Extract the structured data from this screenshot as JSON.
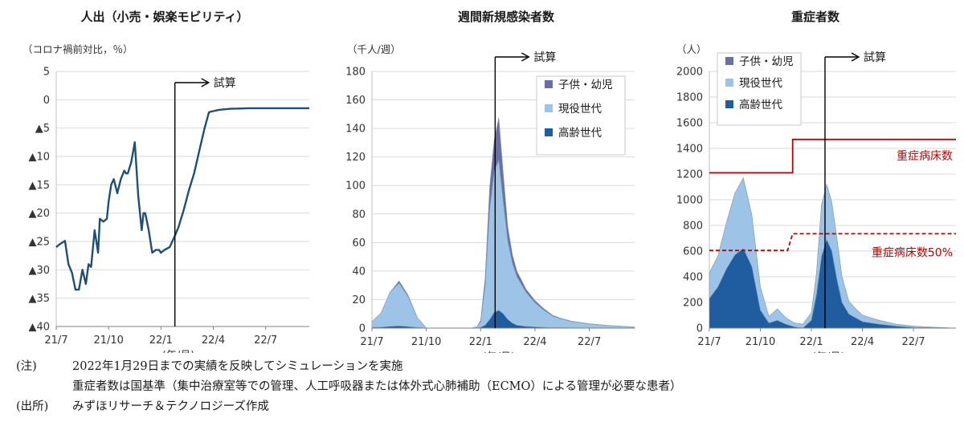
{
  "chart_data": [
    {
      "type": "line",
      "title": "人出（小売・娯楽モビリティ）",
      "ylabel": "（コロナ禍前対比，％）",
      "xlabel": "(年/月)",
      "ylim": [
        -40,
        5
      ],
      "y_ticks": [
        5,
        0,
        -5,
        -10,
        -15,
        -20,
        -25,
        -30,
        -35,
        -40
      ],
      "y_tick_labels": [
        "5",
        "0",
        "▲5",
        "▲10",
        "▲15",
        "▲20",
        "▲25",
        "▲30",
        "▲35",
        "▲40"
      ],
      "x_ticks": [
        0,
        3,
        6,
        9,
        12
      ],
      "x_tick_labels": [
        "21/7",
        "21/10",
        "22/1",
        "22/4",
        "22/7"
      ],
      "xlim": [
        0,
        14.5
      ],
      "grid": "horizontal",
      "annotation": "試算",
      "forecast_start": 6.8,
      "series": [
        {
          "color": "#1f4e79",
          "x": [
            0,
            0.2,
            0.5,
            0.7,
            0.9,
            1.1,
            1.3,
            1.5,
            1.7,
            1.85,
            2.0,
            2.2,
            2.4,
            2.5,
            2.7,
            2.9,
            3.0,
            3.15,
            3.3,
            3.5,
            3.7,
            3.9,
            4.0,
            4.1,
            4.3,
            4.5,
            4.7,
            4.9,
            5.0,
            5.1,
            5.3,
            5.5,
            5.7,
            5.9,
            6.0,
            6.2,
            6.5,
            6.8,
            7.0,
            7.3,
            7.6,
            7.9,
            8.2,
            8.5,
            8.75,
            9.0,
            9.3,
            9.6,
            10.0,
            10.5,
            11,
            11.5,
            12,
            13,
            14,
            14.5
          ],
          "values": [
            -26,
            -25.5,
            -24.9,
            -29,
            -30.5,
            -33.5,
            -33.5,
            -30,
            -32.5,
            -29,
            -29.5,
            -23,
            -27,
            -21,
            -21.5,
            -21,
            -18,
            -15,
            -14,
            -16.5,
            -14,
            -12.5,
            -13,
            -13,
            -11,
            -7.5,
            -17,
            -23,
            -20,
            -20,
            -23,
            -27,
            -26.5,
            -26.5,
            -27,
            -26.5,
            -26,
            -24,
            -22.5,
            -19.5,
            -16,
            -13,
            -9,
            -5,
            -2.2,
            -2,
            -1.8,
            -1.7,
            -1.6,
            -1.55,
            -1.5,
            -1.5,
            -1.5,
            -1.5,
            -1.5,
            -1.5
          ]
        }
      ]
    },
    {
      "type": "area",
      "title": "週間新規感染者数",
      "ylabel": "（千人/週）",
      "xlabel": "(年/月)",
      "ylim": [
        0,
        180
      ],
      "y_ticks": [
        0,
        20,
        40,
        60,
        80,
        100,
        120,
        140,
        160,
        180
      ],
      "x_ticks": [
        0,
        3,
        6,
        9,
        12
      ],
      "x_tick_labels": [
        "21/7",
        "21/10",
        "22/1",
        "22/4",
        "22/7"
      ],
      "xlim": [
        0,
        14.5
      ],
      "grid": "horizontal",
      "stacked": true,
      "annotation": "試算",
      "forecast_start": 6.8,
      "legend_placement": "top-right",
      "series": [
        {
          "name": "子供・幼児",
          "color": "#6a6fa8",
          "x": [
            0,
            0.5,
            1.0,
            1.5,
            2.0,
            2.5,
            3.0,
            4.0,
            5.0,
            5.5,
            5.8,
            6.0,
            6.25,
            6.5,
            6.75,
            7.0,
            7.25,
            7.5,
            7.75,
            8.0,
            8.5,
            9.0,
            9.5,
            10.0,
            10.5,
            11.0,
            12.0,
            13.0,
            14.5
          ],
          "values": [
            0,
            0,
            0,
            1.5,
            1,
            0,
            0,
            0,
            0,
            0,
            0,
            1,
            6,
            16,
            22,
            30,
            20,
            10,
            6,
            4,
            2.2,
            1.5,
            1,
            0.6,
            0.4,
            0.3,
            0.2,
            0.1,
            0
          ]
        },
        {
          "name": "現役世代",
          "color": "#9dc3e6",
          "x": [
            0,
            0.5,
            1.0,
            1.5,
            2.0,
            2.5,
            3.0,
            4.0,
            5.0,
            5.5,
            5.8,
            6.0,
            6.25,
            6.5,
            6.75,
            7.0,
            7.25,
            7.5,
            7.75,
            8.0,
            8.5,
            9.0,
            9.5,
            10.0,
            10.5,
            11.0,
            12.0,
            13.0,
            14.5
          ],
          "values": [
            4,
            10,
            24,
            30,
            21,
            7,
            0,
            0,
            0,
            0,
            1,
            4,
            27,
            77,
            99,
            105,
            78,
            55,
            42,
            34,
            24,
            17,
            12,
            8,
            6,
            4.5,
            2.8,
            1.8,
            0.8
          ]
        },
        {
          "name": "高齢世代",
          "color": "#1f5ca0",
          "x": [
            0,
            0.5,
            1.0,
            1.5,
            2.0,
            2.5,
            3.0,
            4.0,
            5.0,
            5.5,
            5.8,
            6.0,
            6.25,
            6.5,
            6.75,
            7.0,
            7.25,
            7.5,
            7.75,
            8.0,
            8.5,
            9.0,
            9.5,
            10.0,
            10.5,
            11.0,
            12.0,
            13.0,
            14.5
          ],
          "values": [
            0.5,
            0.6,
            1.2,
            1.5,
            1,
            0.4,
            0,
            0,
            0,
            0,
            0,
            0.5,
            2,
            6,
            11,
            12.5,
            10,
            6,
            3.5,
            2,
            1.2,
            0.8,
            0.5,
            0.3,
            0.2,
            0.1,
            0.1,
            0,
            0
          ]
        }
      ]
    },
    {
      "type": "area",
      "title": "重症者数",
      "ylabel": "（人）",
      "xlabel": "(年/月)",
      "ylim": [
        0,
        2000
      ],
      "y_ticks": [
        0,
        200,
        400,
        600,
        800,
        1000,
        1200,
        1400,
        1600,
        1800,
        2000
      ],
      "x_ticks": [
        0,
        3,
        6,
        9,
        12
      ],
      "x_tick_labels": [
        "21/7",
        "21/10",
        "22/1",
        "22/4",
        "22/7"
      ],
      "xlim": [
        0,
        14.5
      ],
      "grid": "horizontal",
      "stacked": true,
      "annotation": "試算",
      "forecast_start": 6.8,
      "legend_placement": "top-left",
      "series": [
        {
          "name": "子供・幼児",
          "color": "#6a6fa8",
          "x": [
            0,
            0.5,
            1.0,
            1.5,
            2.0,
            2.5,
            3.0,
            3.5,
            4.0,
            4.5,
            5.0,
            5.5,
            6.0,
            6.3,
            6.6,
            6.9,
            7.2,
            7.5,
            7.8,
            8.2,
            8.6,
            9.0,
            10.0,
            11.0,
            12.0,
            13.0,
            14.5
          ],
          "values": [
            0,
            0,
            0,
            0,
            0,
            0,
            0,
            0,
            0,
            0,
            0,
            0,
            0,
            0,
            0,
            0,
            0,
            0,
            0,
            0,
            0,
            0,
            0,
            0,
            0,
            0,
            0
          ]
        },
        {
          "name": "現役世代",
          "color": "#9dc3e6",
          "x": [
            0,
            0.5,
            1.0,
            1.5,
            2.0,
            2.5,
            3.0,
            3.5,
            4.0,
            4.5,
            5.0,
            5.5,
            6.0,
            6.3,
            6.6,
            6.9,
            7.2,
            7.5,
            7.8,
            8.2,
            8.6,
            9.0,
            10.0,
            11.0,
            12.0,
            13.0,
            14.5
          ],
          "values": [
            200,
            240,
            360,
            480,
            550,
            400,
            180,
            50,
            90,
            50,
            30,
            30,
            60,
            170,
            400,
            430,
            380,
            320,
            200,
            100,
            70,
            50,
            30,
            15,
            10,
            5,
            0
          ]
        },
        {
          "name": "高齢世代",
          "color": "#1f5ca0",
          "x": [
            0,
            0.5,
            1.0,
            1.5,
            2.0,
            2.5,
            3.0,
            3.5,
            4.0,
            4.5,
            5.0,
            5.5,
            6.0,
            6.3,
            6.6,
            6.9,
            7.2,
            7.5,
            7.8,
            8.2,
            8.6,
            9.0,
            10.0,
            11.0,
            12.0,
            13.0,
            14.5
          ],
          "values": [
            230,
            320,
            460,
            570,
            620,
            480,
            140,
            40,
            60,
            30,
            10,
            0,
            60,
            260,
            560,
            690,
            600,
            380,
            200,
            110,
            80,
            50,
            30,
            15,
            5,
            3,
            0
          ]
        }
      ],
      "reference_lines": [
        {
          "name": "重症病床数",
          "color": "#c00000",
          "style": "solid",
          "x": [
            0,
            4.6,
            4.6,
            4.9,
            4.9,
            14.5
          ],
          "values": [
            1210,
            1210,
            1210,
            1210,
            1470,
            1470
          ]
        },
        {
          "name": "重症病床数50%",
          "color": "#c00000",
          "style": "dashed",
          "x": [
            0,
            4.6,
            4.9,
            14.5
          ],
          "values": [
            605,
            605,
            735,
            735
          ]
        }
      ]
    }
  ],
  "notes": [
    {
      "tag": "(注)",
      "text": "2022年1月29日までの実績を反映してシミュレーションを実施"
    },
    {
      "tag": "",
      "text": "重症者数は国基準（集中治療室等での管理、人工呼吸器または体外式心肺補助（ECMO）による管理が必要な患者）"
    },
    {
      "tag": "(出所)",
      "text": "みずほリサーチ＆テクノロジーズ作成"
    }
  ]
}
